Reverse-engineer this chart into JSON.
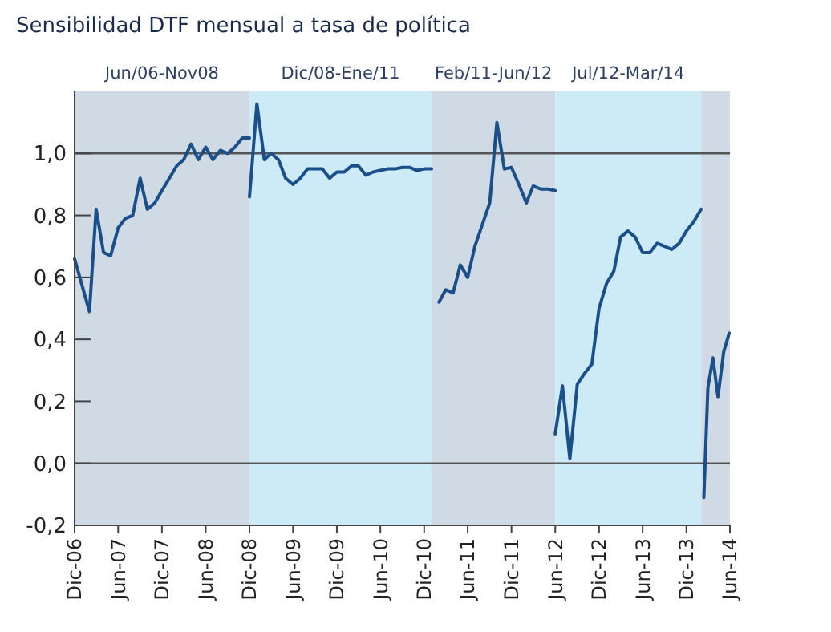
{
  "chart_data": {
    "type": "line",
    "title": "Sensibilidad DTF mensual a tasa de política",
    "xlim": [
      "2006-12",
      "2014-06"
    ],
    "ylim": [
      -0.2,
      1.2
    ],
    "xticks": [
      {
        "value": "2006-12",
        "label": "Dic-06"
      },
      {
        "value": "2007-06",
        "label": "Jun-07"
      },
      {
        "value": "2007-12",
        "label": "Dic-07"
      },
      {
        "value": "2008-06",
        "label": "Jun-08"
      },
      {
        "value": "2008-12",
        "label": "Dic-08"
      },
      {
        "value": "2009-06",
        "label": "Jun-09"
      },
      {
        "value": "2009-12",
        "label": "Dic-09"
      },
      {
        "value": "2010-06",
        "label": "Jun-10"
      },
      {
        "value": "2010-12",
        "label": "Dic-10"
      },
      {
        "value": "2011-06",
        "label": "Jun-11"
      },
      {
        "value": "2011-12",
        "label": "Dic-11"
      },
      {
        "value": "2012-06",
        "label": "Jun-12"
      },
      {
        "value": "2012-12",
        "label": "Dic-12"
      },
      {
        "value": "2013-06",
        "label": "Jun-13"
      },
      {
        "value": "2013-12",
        "label": "Dic-13"
      },
      {
        "value": "2014-06",
        "label": "Jun-14"
      }
    ],
    "yticks": [
      {
        "value": -0.2,
        "label": "-0,2"
      },
      {
        "value": 0,
        "label": "0,0"
      },
      {
        "value": 0.2,
        "label": "0,2"
      },
      {
        "value": 0.4,
        "label": "0,4"
      },
      {
        "value": 0.6,
        "label": "0,6"
      },
      {
        "value": 0.8,
        "label": "0,8"
      },
      {
        "value": 1,
        "label": "1,0"
      }
    ],
    "marker": "none",
    "line_style": "solid",
    "ref_lines": [
      {
        "axis": "y",
        "value": 1,
        "color": "#555555"
      },
      {
        "axis": "y",
        "value": 0,
        "color": "#555555"
      }
    ],
    "bands": [
      {
        "axis": "x",
        "from": "2006-12",
        "to": "2008-12",
        "label": "Jun/06-Nov08",
        "color": "#d0dae5"
      },
      {
        "axis": "x",
        "from": "2008-12",
        "to": "2011-01",
        "label": "Dic/08-Ene/11",
        "color": "#cdebf7"
      },
      {
        "axis": "x",
        "from": "2011-01",
        "to": "2012-06",
        "label": "Feb/11-Jun/12",
        "color": "#d0dae5"
      },
      {
        "axis": "x",
        "from": "2012-06",
        "to": "2014-02",
        "label": "Jul/12-Mar/14",
        "color": "#cdebf7"
      },
      {
        "axis": "x",
        "from": "2014-02",
        "to": "2014-06",
        "color": "#d0dae5"
      }
    ],
    "series": [
      {
        "color": "#1b4f8a",
        "x": [
          "2006-12",
          "2007-02",
          "2007-03",
          "2007-04",
          "2007-05",
          "2007-06",
          "2007-07",
          "2007-08",
          "2007-09",
          "2007-10",
          "2007-11",
          "2007-12",
          "2008-01",
          "2008-02",
          "2008-03",
          "2008-04",
          "2008-05",
          "2008-06",
          "2008-07",
          "2008-08",
          "2008-09",
          "2008-10",
          "2008-11",
          "2008-12"
        ],
        "values": [
          0.66,
          0.49,
          0.82,
          0.68,
          0.67,
          0.76,
          0.79,
          0.8,
          0.92,
          0.82,
          0.84,
          0.88,
          0.92,
          0.96,
          0.98,
          1.03,
          0.98,
          1.02,
          0.98,
          1.01,
          1.0,
          1.02,
          1.05,
          1.05
        ]
      },
      {
        "color": "#1b4f8a",
        "x": [
          "2008-12",
          "2009-01",
          "2009-02",
          "2009-03",
          "2009-04",
          "2009-05",
          "2009-06",
          "2009-07",
          "2009-08",
          "2009-09",
          "2009-10",
          "2009-11",
          "2009-12",
          "2010-01",
          "2010-02",
          "2010-03",
          "2010-04",
          "2010-05",
          "2010-06",
          "2010-07",
          "2010-08",
          "2010-09",
          "2010-10",
          "2010-11",
          "2010-12",
          "2011-01"
        ],
        "values": [
          0.86,
          1.16,
          0.98,
          1.0,
          0.98,
          0.92,
          0.9,
          0.92,
          0.95,
          0.95,
          0.95,
          0.92,
          0.94,
          0.94,
          0.96,
          0.96,
          0.93,
          0.94,
          0.945,
          0.95,
          0.95,
          0.955,
          0.955,
          0.945,
          0.95,
          0.95
        ]
      },
      {
        "color": "#1b4f8a",
        "x": [
          "2011-02",
          "2011-03",
          "2011-04",
          "2011-05",
          "2011-06",
          "2011-07",
          "2011-08",
          "2011-09",
          "2011-10",
          "2011-11",
          "2011-12",
          "2012-01",
          "2012-02",
          "2012-03",
          "2012-04",
          "2012-05",
          "2012-06"
        ],
        "values": [
          0.52,
          0.56,
          0.55,
          0.64,
          0.6,
          0.7,
          0.77,
          0.84,
          1.1,
          0.95,
          0.955,
          0.9,
          0.84,
          0.895,
          0.885,
          0.885,
          0.88
        ]
      },
      {
        "color": "#1b4f8a",
        "x": [
          "2012-06",
          "2012-07",
          "2012-08",
          "2012-09",
          "2012-10",
          "2012-11",
          "2012-12",
          "2013-01",
          "2013-02",
          "2013-03",
          "2013-04",
          "2013-05",
          "2013-06",
          "2013-07",
          "2013-08",
          "2013-09",
          "2013-10",
          "2013-11",
          "2013-12",
          "2014-01",
          "2014-02"
        ],
        "values": [
          0.095,
          0.25,
          0.015,
          0.255,
          0.29,
          0.32,
          0.5,
          0.58,
          0.62,
          0.73,
          0.75,
          0.73,
          0.68,
          0.68,
          0.71,
          0.7,
          0.69,
          0.71,
          0.75,
          0.78,
          0.82
        ]
      },
      {
        "color": "#1b4f8a",
        "x": [
          "2014-02-12",
          "2014-03-01",
          "2014-03-22",
          "2014-04-12",
          "2014-05-06",
          "2014-05-29"
        ],
        "values": [
          -0.11,
          0.245,
          0.34,
          0.215,
          0.36,
          0.42
        ]
      }
    ]
  }
}
